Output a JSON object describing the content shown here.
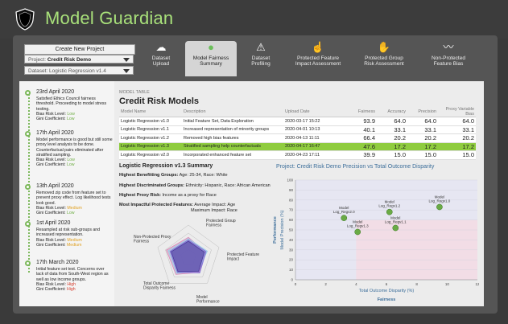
{
  "app": {
    "title": "Model Guardian"
  },
  "controls": {
    "create_button": "Create New Project",
    "project_label": "Project:",
    "project_value": "Credit Risk Demo",
    "dataset_label": "Dataset:",
    "dataset_value": "Logistic Regression v1.4"
  },
  "nav": [
    {
      "line1": "Dataset",
      "line2": "Upload",
      "icon": "cloud-upload-icon"
    },
    {
      "line1": "Model Fairness",
      "line2": "Summary",
      "icon": "chat-bubble-icon"
    },
    {
      "line1": "Dataset",
      "line2": "Profiling",
      "icon": "compass-icon"
    },
    {
      "line1": "Protected Feature",
      "line2": "Impact Assessment",
      "icon": "hand-pointer-icon"
    },
    {
      "line1": "Protected Group",
      "line2": "Risk Assessment",
      "icon": "handshake-icon"
    },
    {
      "line1": "Non-Protected",
      "line2": "Feature Bias",
      "icon": "trend-line-icon"
    }
  ],
  "timeline": [
    {
      "date": "23rd April 2020",
      "text": "Satisfied Ethics Council fairness threshold. Proceeding to model stress testing.",
      "bias_label": "Bias Risk Level:",
      "bias_value": "Low",
      "bias_level": "low",
      "gini_label": "Gini Coefficient:",
      "gini_value": "Low",
      "gini_level": "low"
    },
    {
      "date": "17th April 2020",
      "text": "Model performance is good but still some proxy level analysis to be done. Counterfactual pairs eliminated after stratified sampling.",
      "bias_label": "Bias Risk Level:",
      "bias_value": "Low",
      "bias_level": "low",
      "gini_label": "Gini Coefficient:",
      "gini_value": "Low",
      "gini_level": "low"
    },
    {
      "date": "13th April 2020",
      "text": "Removed zip code from feature set to prevent proxy effect. Log likelihood tests look good.",
      "bias_label": "Bias Risk Level:",
      "bias_value": "Medium",
      "bias_level": "med",
      "gini_label": "Gini Coefficient:",
      "gini_value": "Low",
      "gini_level": "low"
    },
    {
      "date": "1st April 2020",
      "text": "Resampled at risk sub-groups and increased representation.",
      "bias_label": "Bias Risk Level:",
      "bias_value": "Medium",
      "bias_level": "med",
      "gini_label": "Gini Coefficient:",
      "gini_value": "Medium",
      "gini_level": "med"
    },
    {
      "date": "17th March 2020",
      "text": "Initial feature set test. Concerns over lack of data from South-West region as well as low income groups.",
      "bias_label": "Bias Risk Level:",
      "bias_value": "High",
      "bias_level": "high",
      "gini_label": "Gini Coefficient:",
      "gini_value": "High",
      "gini_level": "high"
    }
  ],
  "table": {
    "label": "MODEL TABLE",
    "title": "Credit Risk Models",
    "columns": [
      "Model Name",
      "Description",
      "Upload Date",
      "Fairness",
      "Accuracy",
      "Precision",
      "Proxy Variable Bias"
    ],
    "rows": [
      [
        "Logistic Regression v1.0",
        "Initial Feature Set, Data Exploration",
        "2020-03-17 15:22",
        "93.9",
        "64.0",
        "64.0",
        "64.0"
      ],
      [
        "Logistic Regression v1.1",
        "Increased representation of minority groups",
        "2020-04-01 10:13",
        "40.1",
        "33.1",
        "33.1",
        "33.1"
      ],
      [
        "Logistic Regression v1.2",
        "Removed high bias features",
        "2020-04-13 11:11",
        "66.4",
        "20.2",
        "20.2",
        "20.2"
      ],
      [
        "Logistic Regression v1.3",
        "Stratified sampling help counterfactuals",
        "2020-04-17 16:47",
        "47.6",
        "17.2",
        "17.2",
        "17.2"
      ],
      [
        "Logistic Regression v2.0",
        "Incorporated enhanced feature set",
        "2020-04-23 17:11",
        "39.9",
        "15.0",
        "15.0",
        "15.0"
      ]
    ],
    "selected_row": 3
  },
  "detail": {
    "title": "Logistic Regression v1.3 Summary",
    "lines": [
      {
        "label": "Highest Benefitting Groups:",
        "value": "Age: 25-34, Race: White"
      },
      {
        "label": "Highest Discriminated Groups:",
        "value": "Ethnicity: Hispanic, Race: African American"
      },
      {
        "label": "Highest Proxy Risk:",
        "value": "Income as a proxy for Race"
      },
      {
        "label": "Most Impactful Protected Features:",
        "value": "Average Impact: Age"
      },
      {
        "label": "",
        "value": "Maximum Impact: Race"
      }
    ]
  },
  "chart_data": [
    {
      "type": "radar",
      "axes": [
        "Protected Group Fairness",
        "Protected Feature Impact",
        "Model Performance",
        "Total Outcome Disparity Fairness",
        "Non-Protected Proxy Fairness"
      ],
      "series": [
        {
          "values": [
            0.62,
            0.55,
            0.58,
            0.66,
            0.72
          ],
          "color": "#d98ab8"
        },
        {
          "values": [
            0.58,
            0.62,
            0.52,
            0.62,
            0.66
          ],
          "color": "#9ad0e8"
        },
        {
          "values": [
            0.54,
            0.58,
            0.6,
            0.58,
            0.6
          ],
          "color": "#7f6fd6"
        },
        {
          "values": [
            0.5,
            0.52,
            0.54,
            0.55,
            0.56
          ],
          "color": "#4a3a9a"
        }
      ]
    },
    {
      "type": "scatter",
      "title": "Project: Credit Risk Demo Precision vs Total Outcome Disparity",
      "xlabel": "Total Outcome Disparity (%)",
      "ylabel": "Model Precision (%)",
      "x_group_label": "Fairness",
      "y_group_label": "Performance",
      "xlim": [
        0,
        12
      ],
      "ylim": [
        0,
        100
      ],
      "xticks": [
        0,
        2,
        4,
        6,
        8,
        10,
        12
      ],
      "yticks": [
        0,
        10,
        20,
        30,
        40,
        50,
        60,
        70,
        80,
        90,
        100
      ],
      "points": [
        {
          "label": "Model Log_Regv2.0",
          "x": 3.2,
          "y": 62
        },
        {
          "label": "Model Log_Regv1.3",
          "x": 4.1,
          "y": 48
        },
        {
          "label": "Model Log_Regv1.2",
          "x": 6.2,
          "y": 68
        },
        {
          "label": "Model Log_Regv1.1",
          "x": 6.6,
          "y": 52
        },
        {
          "label": "Model Log_Regv1.0",
          "x": 9.5,
          "y": 73
        }
      ],
      "colors": {
        "point": "#6aaa46",
        "region_high": "#e6e6f2",
        "region_low": "#f2dde6"
      }
    }
  ]
}
